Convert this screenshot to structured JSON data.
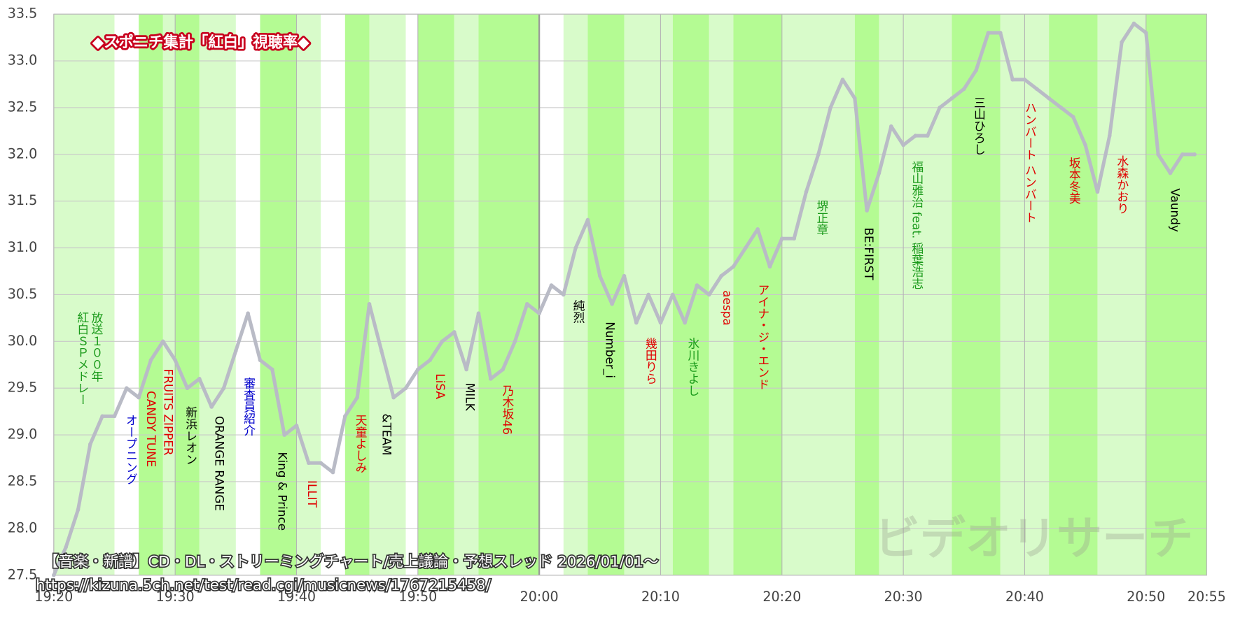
{
  "chart_data": {
    "type": "line",
    "title": "◆スポニチ集計「紅白」視聴率◆",
    "watermark": "ビデオリサーチ",
    "x": [
      "19:20",
      "19:21",
      "19:22",
      "19:23",
      "19:24",
      "19:25",
      "19:26",
      "19:27",
      "19:28",
      "19:29",
      "19:30",
      "19:31",
      "19:32",
      "19:33",
      "19:34",
      "19:35",
      "19:36",
      "19:37",
      "19:38",
      "19:39",
      "19:40",
      "19:41",
      "19:42",
      "19:43",
      "19:44",
      "19:45",
      "19:46",
      "19:47",
      "19:48",
      "19:49",
      "19:50",
      "19:51",
      "19:52",
      "19:53",
      "19:54",
      "19:55",
      "19:56",
      "19:57",
      "19:58",
      "19:59",
      "20:00",
      "20:01",
      "20:02",
      "20:03",
      "20:04",
      "20:05",
      "20:06",
      "20:07",
      "20:08",
      "20:09",
      "20:10",
      "20:11",
      "20:12",
      "20:13",
      "20:14",
      "20:15",
      "20:16",
      "20:17",
      "20:18",
      "20:19",
      "20:20",
      "20:21",
      "20:22",
      "20:23",
      "20:24",
      "20:25",
      "20:26",
      "20:27",
      "20:28",
      "20:29",
      "20:30",
      "20:31",
      "20:32",
      "20:33",
      "20:34",
      "20:35",
      "20:36",
      "20:37",
      "20:38",
      "20:39",
      "20:40",
      "20:41",
      "20:42",
      "20:43",
      "20:44",
      "20:45",
      "20:46",
      "20:47",
      "20:48",
      "20:49",
      "20:50",
      "20:51",
      "20:52",
      "20:53",
      "20:54"
    ],
    "values": [
      27.5,
      27.8,
      28.2,
      28.9,
      29.2,
      29.2,
      29.5,
      29.4,
      29.8,
      30.0,
      29.8,
      29.5,
      29.6,
      29.3,
      29.5,
      29.9,
      30.3,
      29.8,
      29.7,
      29.0,
      29.1,
      28.7,
      28.7,
      28.6,
      29.2,
      29.4,
      30.4,
      29.9,
      29.4,
      29.5,
      29.7,
      29.8,
      30.0,
      30.1,
      29.7,
      30.3,
      29.6,
      29.7,
      30.0,
      30.4,
      30.3,
      30.6,
      30.5,
      31.0,
      31.3,
      30.7,
      30.4,
      30.7,
      30.2,
      30.5,
      30.2,
      30.5,
      30.2,
      30.6,
      30.5,
      30.7,
      30.8,
      31.0,
      31.2,
      30.8,
      31.1,
      31.1,
      31.6,
      32.0,
      32.5,
      32.8,
      32.6,
      31.4,
      31.8,
      32.3,
      32.1,
      32.2,
      32.2,
      32.5,
      32.6,
      32.7,
      32.9,
      33.3,
      33.3,
      32.8,
      32.8,
      32.7,
      32.6,
      32.5,
      32.4,
      32.1,
      31.6,
      32.2,
      33.2,
      33.4,
      33.3,
      32.0,
      31.8,
      32.0,
      32.0
    ],
    "color": "#b9bbc6",
    "xlim": [
      "19:20",
      "20:55"
    ],
    "xticks": [
      "19:20",
      "19:30",
      "19:40",
      "19:50",
      "20:00",
      "20:10",
      "20:20",
      "20:30",
      "20:40",
      "20:50",
      "20:55"
    ],
    "ylim": [
      27.5,
      33.5
    ],
    "yticks": [
      27.5,
      {
        "value": 28,
        "label": "28.0"
      },
      28.5,
      {
        "value": 29,
        "label": "29.0"
      },
      29.5,
      {
        "value": 30,
        "label": "30.0"
      },
      30.5,
      {
        "value": 31,
        "label": "31.0"
      },
      31.5,
      {
        "value": 32,
        "label": "32.0"
      },
      32.5,
      {
        "value": 33,
        "label": "33.0"
      },
      33.5
    ],
    "grid": true,
    "bands": [
      {
        "start": "19:20",
        "end": "19:25",
        "color": "#d8fbca"
      },
      {
        "start": "19:27",
        "end": "19:29",
        "color": "#b4fb93"
      },
      {
        "start": "19:29",
        "end": "19:30",
        "color": "#d8fbca"
      },
      {
        "start": "19:30",
        "end": "19:32",
        "color": "#b4fb93"
      },
      {
        "start": "19:32",
        "end": "19:35",
        "color": "#d8fbca"
      },
      {
        "start": "19:37",
        "end": "19:40",
        "color": "#b4fb93"
      },
      {
        "start": "19:40",
        "end": "19:42",
        "color": "#d8fbca"
      },
      {
        "start": "19:44",
        "end": "19:46",
        "color": "#b4fb93"
      },
      {
        "start": "19:46",
        "end": "19:49",
        "color": "#d8fbca"
      },
      {
        "start": "19:50",
        "end": "19:53",
        "color": "#b4fb93"
      },
      {
        "start": "19:53",
        "end": "19:55",
        "color": "#d8fbca"
      },
      {
        "start": "19:55",
        "end": "20:00",
        "color": "#b4fb93"
      },
      {
        "start": "20:02",
        "end": "20:04",
        "color": "#d8fbca"
      },
      {
        "start": "20:04",
        "end": "20:07",
        "color": "#b4fb93"
      },
      {
        "start": "20:07",
        "end": "20:11",
        "color": "#d8fbca"
      },
      {
        "start": "20:11",
        "end": "20:14",
        "color": "#b4fb93"
      },
      {
        "start": "20:14",
        "end": "20:16",
        "color": "#d8fbca"
      },
      {
        "start": "20:16",
        "end": "20:20",
        "color": "#b4fb93"
      },
      {
        "start": "20:20",
        "end": "20:26",
        "color": "#d8fbca"
      },
      {
        "start": "20:26",
        "end": "20:28",
        "color": "#b4fb93"
      },
      {
        "start": "20:28",
        "end": "20:34",
        "color": "#d8fbca"
      },
      {
        "start": "20:34",
        "end": "20:38",
        "color": "#b4fb93"
      },
      {
        "start": "20:38",
        "end": "20:42",
        "color": "#d8fbca"
      },
      {
        "start": "20:42",
        "end": "20:46",
        "color": "#b4fb93"
      },
      {
        "start": "20:46",
        "end": "20:50",
        "color": "#d8fbca"
      },
      {
        "start": "20:50",
        "end": "20:55",
        "color": "#b4fb93"
      }
    ],
    "annotations": [
      {
        "text": "放送１００年",
        "color": "#1a9a1a"
      },
      {
        "text": "紅白ＳＰメドレー",
        "color": "#1a9a1a"
      },
      {
        "text": "オープニング",
        "color": "#0000cc"
      },
      {
        "text": "CANDY TUNE",
        "color": "#e00000"
      },
      {
        "text": "FRUITS ZIPPER",
        "color": "#e00000"
      },
      {
        "text": "新浜レオン",
        "color": "#000000"
      },
      {
        "text": "ORANGE RANGE",
        "color": "#000000"
      },
      {
        "text": "審査員紹介",
        "color": "#0000cc"
      },
      {
        "text": "King & Prince",
        "color": "#000000"
      },
      {
        "text": "ILLIT",
        "color": "#e00000"
      },
      {
        "text": "天童よしみ",
        "color": "#e00000"
      },
      {
        "text": "&TEAM",
        "color": "#000000"
      },
      {
        "text": "LiSA",
        "color": "#e00000"
      },
      {
        "text": "MILK",
        "color": "#000000"
      },
      {
        "text": "乃木坂46",
        "color": "#e00000"
      },
      {
        "text": "純烈",
        "color": "#000000"
      },
      {
        "text": "Number_i",
        "color": "#000000"
      },
      {
        "text": "幾田りら",
        "color": "#e00000"
      },
      {
        "text": "氷川きよし",
        "color": "#1a9a1a"
      },
      {
        "text": "aespa",
        "color": "#e00000"
      },
      {
        "text": "アイナ・ジ・エンド",
        "color": "#e00000"
      },
      {
        "text": "堺正章",
        "color": "#1a9a1a"
      },
      {
        "text": "BE:FIRST",
        "color": "#000000"
      },
      {
        "text": "福山雅治 feat. 稲葉浩志",
        "color": "#1a9a1a"
      },
      {
        "text": "三山ひろし",
        "color": "#000000"
      },
      {
        "text": "ハンバート ハンバート",
        "color": "#e00000"
      },
      {
        "text": "坂本冬美",
        "color": "#e00000"
      },
      {
        "text": "水森かおり",
        "color": "#e00000"
      },
      {
        "text": "Vaundy",
        "color": "#000000"
      }
    ]
  },
  "overlay": {
    "lines": [
      "【音楽・新譜】CD・DL・ストリーミングチャート/売上議論・予想スレッド 2026/01/01〜",
      "https://kizuna.5ch.net/test/read.cgi/musicnews/1767215458/"
    ]
  }
}
